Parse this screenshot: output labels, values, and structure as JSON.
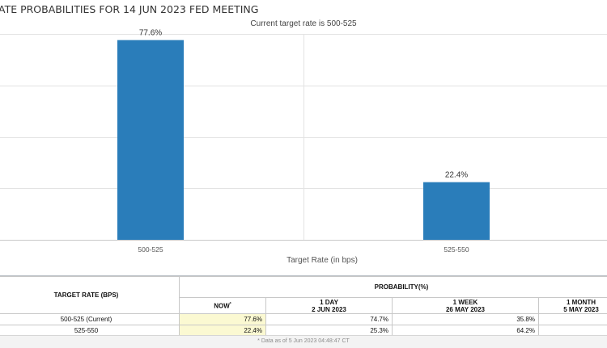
{
  "chart_data": {
    "type": "bar",
    "title": "ATE PROBABILITIES FOR 14 JUN 2023 FED MEETING",
    "subtitle": "Current target rate is 500-525",
    "xlabel": "Target Rate (in bps)",
    "ylabel": "",
    "categories": [
      "500-525",
      "525-550"
    ],
    "values": [
      77.6,
      22.4
    ],
    "value_labels": [
      "77.6%",
      "22.4%"
    ],
    "ylim": [
      0,
      80
    ],
    "grid": true,
    "bar_color": "#2a7dba"
  },
  "table": {
    "target_rate_header": "TARGET RATE (BPS)",
    "probability_header": "PROBABILITY(%)",
    "columns": [
      {
        "label": "NOW",
        "marker": "*",
        "date": ""
      },
      {
        "label": "1 DAY",
        "date": "2 JUN 2023"
      },
      {
        "label": "1 WEEK",
        "date": "26 MAY 2023"
      },
      {
        "label": "1 MONTH",
        "date": "5 MAY 2023"
      }
    ],
    "rows": [
      {
        "rate": "500-525 (Current)",
        "now": "77.6%",
        "day1": "74.7%",
        "week1": "35.8%",
        "month1": ""
      },
      {
        "rate": "525-550",
        "now": "22.4%",
        "day1": "25.3%",
        "week1": "64.2%",
        "month1": ""
      }
    ],
    "footnote": "* Data as of 5 Jun 2023 04:48:47 CT"
  }
}
